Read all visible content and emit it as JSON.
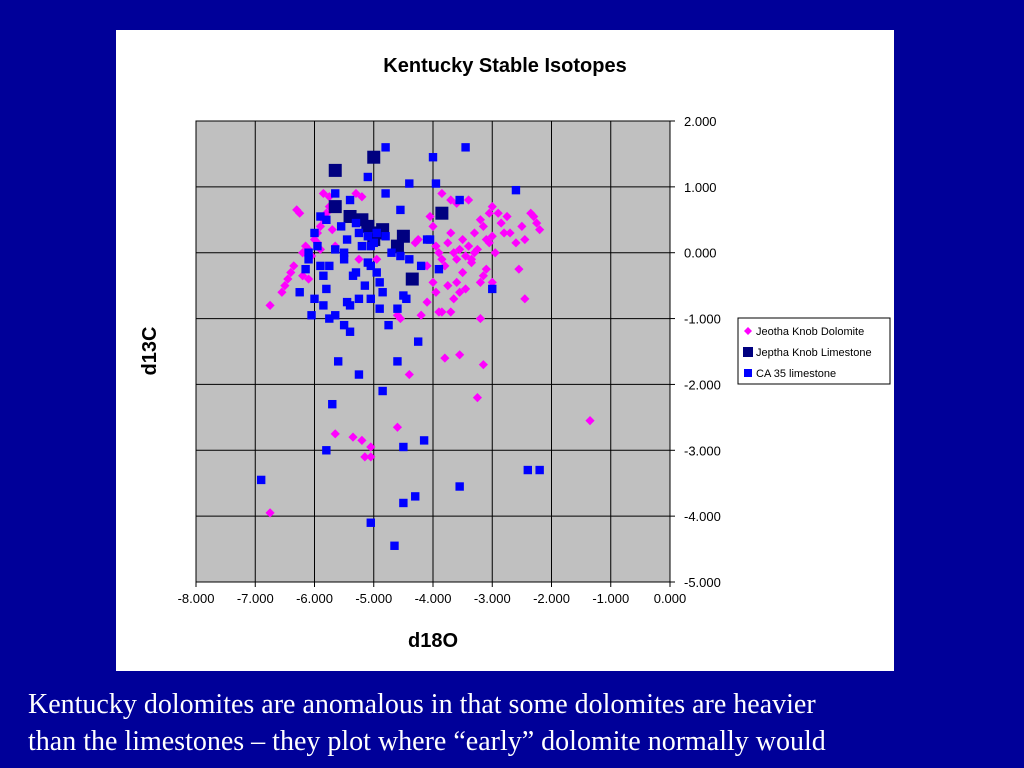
{
  "chart_data": {
    "type": "scatter",
    "title": "Kentucky Stable Isotopes",
    "xlabel": "d18O",
    "ylabel": "d13C",
    "xlim": [
      -8,
      0
    ],
    "ylim": [
      -5,
      2
    ],
    "xticks": [
      "-8.000",
      "-7.000",
      "-6.000",
      "-5.000",
      "-4.000",
      "-3.000",
      "-2.000",
      "-1.000",
      "0.000"
    ],
    "yticks": [
      "2.000",
      "1.000",
      "0.000",
      "-1.000",
      "-2.000",
      "-3.000",
      "-4.000",
      "-5.000"
    ],
    "grid": true,
    "y_axis_side": "right",
    "plot_background": "#c0c0c0",
    "legend_position": "right",
    "series": [
      {
        "name": "Jeotha Knob Dolomite",
        "marker": "diamond",
        "color": "#ff00ff",
        "points": [
          [
            -6.3,
            0.65
          ],
          [
            -6.25,
            0.6
          ],
          [
            -6.2,
            0.0
          ],
          [
            -6.15,
            0.1
          ],
          [
            -6.1,
            0.05
          ],
          [
            -6.05,
            -0.05
          ],
          [
            -6.0,
            0.2
          ],
          [
            -5.95,
            0.3
          ],
          [
            -5.9,
            0.4
          ],
          [
            -5.85,
            0.5
          ],
          [
            -5.8,
            0.6
          ],
          [
            -5.75,
            0.7
          ],
          [
            -5.7,
            0.35
          ],
          [
            -5.65,
            0.1
          ],
          [
            -6.35,
            -0.2
          ],
          [
            -6.4,
            -0.3
          ],
          [
            -6.45,
            -0.4
          ],
          [
            -6.5,
            -0.5
          ],
          [
            -6.55,
            -0.6
          ],
          [
            -6.2,
            -0.35
          ],
          [
            -6.1,
            -0.4
          ],
          [
            -5.95,
            0.15
          ],
          [
            -5.9,
            0.05
          ],
          [
            -5.85,
            0.9
          ],
          [
            -5.75,
            0.85
          ],
          [
            -5.3,
            0.9
          ],
          [
            -5.2,
            0.85
          ],
          [
            -5.25,
            -0.1
          ],
          [
            -4.95,
            -0.1
          ],
          [
            -6.75,
            -0.8
          ],
          [
            -4.6,
            -0.95
          ],
          [
            -4.55,
            -1.0
          ],
          [
            -4.4,
            -1.85
          ],
          [
            -4.1,
            -0.75
          ],
          [
            -4.2,
            -0.95
          ],
          [
            -3.95,
            -0.6
          ],
          [
            -3.9,
            -0.9
          ],
          [
            -3.85,
            -0.9
          ],
          [
            -3.75,
            -0.5
          ],
          [
            -3.7,
            -0.9
          ],
          [
            -3.8,
            -1.6
          ],
          [
            -3.55,
            -1.55
          ],
          [
            -3.25,
            -2.2
          ],
          [
            -3.2,
            -1.0
          ],
          [
            -3.15,
            -1.7
          ],
          [
            -2.45,
            -0.7
          ],
          [
            -3.95,
            0.1
          ],
          [
            -3.9,
            0.0
          ],
          [
            -3.85,
            -0.1
          ],
          [
            -3.8,
            -0.2
          ],
          [
            -3.75,
            0.15
          ],
          [
            -3.7,
            0.3
          ],
          [
            -3.65,
            0.0
          ],
          [
            -3.6,
            -0.1
          ],
          [
            -3.55,
            0.05
          ],
          [
            -3.5,
            0.2
          ],
          [
            -3.45,
            -0.05
          ],
          [
            -3.4,
            0.1
          ],
          [
            -3.35,
            -0.15
          ],
          [
            -3.3,
            0.3
          ],
          [
            -3.25,
            0.05
          ],
          [
            -3.2,
            0.5
          ],
          [
            -3.15,
            0.4
          ],
          [
            -3.1,
            0.2
          ],
          [
            -3.05,
            0.15
          ],
          [
            -3.0,
            0.25
          ],
          [
            -2.95,
            0.0
          ],
          [
            -2.9,
            0.6
          ],
          [
            -2.85,
            0.45
          ],
          [
            -2.8,
            0.3
          ],
          [
            -2.75,
            0.55
          ],
          [
            -2.7,
            0.3
          ],
          [
            -2.6,
            0.15
          ],
          [
            -2.55,
            -0.25
          ],
          [
            -2.5,
            0.4
          ],
          [
            -2.45,
            0.2
          ],
          [
            -2.35,
            0.6
          ],
          [
            -2.3,
            0.55
          ],
          [
            -2.25,
            0.45
          ],
          [
            -2.2,
            0.35
          ],
          [
            -3.0,
            0.7
          ],
          [
            -3.05,
            0.6
          ],
          [
            -3.6,
            0.75
          ],
          [
            -3.7,
            0.8
          ],
          [
            -3.4,
            0.8
          ],
          [
            -3.85,
            0.9
          ],
          [
            -3.5,
            -0.3
          ],
          [
            -3.45,
            -0.55
          ],
          [
            -3.6,
            -0.45
          ],
          [
            -3.65,
            -0.7
          ],
          [
            -3.2,
            -0.45
          ],
          [
            -3.15,
            -0.35
          ],
          [
            -3.1,
            -0.25
          ],
          [
            -3.0,
            -0.45
          ],
          [
            -3.3,
            0.0
          ],
          [
            -3.35,
            -0.1
          ],
          [
            -3.55,
            -0.6
          ],
          [
            -4.0,
            -0.45
          ],
          [
            -4.1,
            -0.2
          ],
          [
            -4.05,
            0.55
          ],
          [
            -4.0,
            0.4
          ],
          [
            -4.25,
            0.2
          ],
          [
            -4.3,
            0.15
          ],
          [
            -5.65,
            -2.75
          ],
          [
            -5.35,
            -2.8
          ],
          [
            -5.2,
            -2.85
          ],
          [
            -5.05,
            -2.95
          ],
          [
            -5.05,
            -3.1
          ],
          [
            -5.15,
            -3.1
          ],
          [
            -4.6,
            -2.65
          ],
          [
            -6.75,
            -3.95
          ],
          [
            -1.35,
            -2.55
          ]
        ]
      },
      {
        "name": "Jeptha Knob Limestone",
        "marker": "square",
        "color": "#000080",
        "points": [
          [
            -5.65,
            1.25
          ],
          [
            -5.0,
            1.45
          ],
          [
            -5.65,
            0.7
          ],
          [
            -5.4,
            0.55
          ],
          [
            -5.2,
            0.5
          ],
          [
            -5.1,
            0.4
          ],
          [
            -5.0,
            0.2
          ],
          [
            -4.9,
            0.3
          ],
          [
            -4.85,
            0.35
          ],
          [
            -4.6,
            0.1
          ],
          [
            -4.5,
            0.25
          ],
          [
            -4.35,
            -0.4
          ],
          [
            -3.85,
            0.6
          ]
        ]
      },
      {
        "name": "CA 35 limestone",
        "marker": "square",
        "color": "#0000ff",
        "points": [
          [
            -4.8,
            1.6
          ],
          [
            -3.45,
            1.6
          ],
          [
            -4.0,
            1.45
          ],
          [
            -5.1,
            1.15
          ],
          [
            -3.95,
            1.05
          ],
          [
            -4.4,
            1.05
          ],
          [
            -2.6,
            0.95
          ],
          [
            -4.8,
            0.9
          ],
          [
            -5.65,
            0.9
          ],
          [
            -5.4,
            0.8
          ],
          [
            -4.55,
            0.65
          ],
          [
            -3.55,
            0.8
          ],
          [
            -5.8,
            0.5
          ],
          [
            -5.55,
            0.4
          ],
          [
            -5.3,
            0.45
          ],
          [
            -5.25,
            0.3
          ],
          [
            -5.1,
            0.25
          ],
          [
            -5.05,
            0.1
          ],
          [
            -5.0,
            0.15
          ],
          [
            -4.95,
            0.3
          ],
          [
            -4.8,
            0.25
          ],
          [
            -4.7,
            0.0
          ],
          [
            -4.55,
            -0.05
          ],
          [
            -4.4,
            -0.1
          ],
          [
            -4.2,
            -0.2
          ],
          [
            -4.05,
            0.2
          ],
          [
            -5.95,
            0.1
          ],
          [
            -6.15,
            -0.25
          ],
          [
            -6.25,
            -0.6
          ],
          [
            -6.1,
            -0.1
          ],
          [
            -5.9,
            -0.2
          ],
          [
            -5.85,
            -0.35
          ],
          [
            -5.75,
            -0.2
          ],
          [
            -5.65,
            0.05
          ],
          [
            -5.5,
            -0.1
          ],
          [
            -5.45,
            0.2
          ],
          [
            -5.35,
            -0.35
          ],
          [
            -5.3,
            -0.3
          ],
          [
            -5.2,
            0.1
          ],
          [
            -5.1,
            -0.15
          ],
          [
            -4.9,
            -0.45
          ],
          [
            -4.85,
            -0.6
          ],
          [
            -4.95,
            -0.3
          ],
          [
            -5.05,
            -0.2
          ],
          [
            -5.15,
            -0.5
          ],
          [
            -5.25,
            -0.7
          ],
          [
            -5.45,
            -0.75
          ],
          [
            -5.4,
            -0.8
          ],
          [
            -5.5,
            -1.1
          ],
          [
            -5.65,
            -0.95
          ],
          [
            -5.75,
            -1.0
          ],
          [
            -5.85,
            -0.8
          ],
          [
            -6.05,
            -0.95
          ],
          [
            -6.0,
            -0.7
          ],
          [
            -5.8,
            -0.55
          ],
          [
            -5.05,
            -0.7
          ],
          [
            -4.9,
            -0.85
          ],
          [
            -4.75,
            -1.1
          ],
          [
            -4.6,
            -0.85
          ],
          [
            -4.5,
            -0.65
          ],
          [
            -4.45,
            -0.7
          ],
          [
            -4.25,
            -1.35
          ],
          [
            -5.4,
            -1.2
          ],
          [
            -5.6,
            -1.65
          ],
          [
            -5.25,
            -1.85
          ],
          [
            -4.6,
            -1.65
          ],
          [
            -4.85,
            -2.1
          ],
          [
            -5.7,
            -2.3
          ],
          [
            -4.15,
            -2.85
          ],
          [
            -4.5,
            -2.95
          ],
          [
            -5.8,
            -3.0
          ],
          [
            -6.9,
            -3.45
          ],
          [
            -3.55,
            -3.55
          ],
          [
            -4.3,
            -3.7
          ],
          [
            -4.5,
            -3.8
          ],
          [
            -5.05,
            -4.1
          ],
          [
            -4.65,
            -4.45
          ],
          [
            -2.4,
            -3.3
          ],
          [
            -2.2,
            -3.3
          ],
          [
            -3.0,
            -0.55
          ],
          [
            -3.9,
            -0.25
          ],
          [
            -4.1,
            0.2
          ],
          [
            -6.0,
            0.3
          ],
          [
            -6.1,
            0.0
          ],
          [
            -5.9,
            0.55
          ],
          [
            -5.5,
            0.0
          ]
        ]
      }
    ]
  },
  "caption": {
    "line1": "Kentucky dolomites are anomalous in that some dolomites are heavier",
    "line2": "than the limestones – they plot where “early” dolomite normally would"
  }
}
